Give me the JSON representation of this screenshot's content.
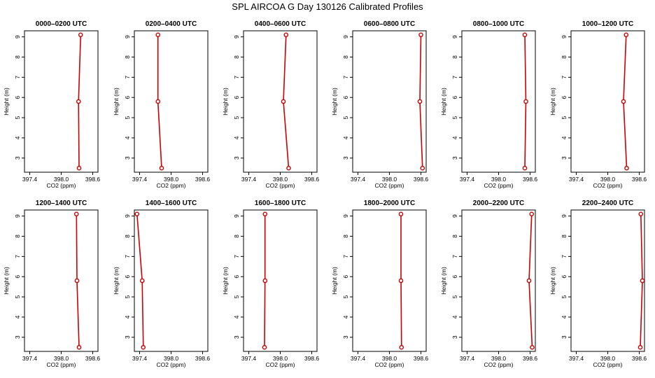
{
  "figure": {
    "title": "SPL AIRCOA G  Day 130126  Calibrated Profiles"
  },
  "chart_data": [
    {
      "type": "line",
      "title": "0000–0200 UTC",
      "xlabel": "CO2 (ppm)",
      "ylabel": "Height (m)",
      "xlim": [
        397.3,
        398.7
      ],
      "ylim": [
        2.3,
        9.3
      ],
      "xticks": [
        "397.4",
        "398.0",
        "398.6"
      ],
      "yticks": [
        "3",
        "4",
        "5",
        "6",
        "7",
        "8",
        "9"
      ],
      "grid": false,
      "series": [
        {
          "color": "#cc0000",
          "points": [
            {
              "x": 398.34,
              "y": 2.5
            },
            {
              "x": 398.33,
              "y": 5.8
            },
            {
              "x": 398.37,
              "y": 9.1
            }
          ]
        }
      ]
    },
    {
      "type": "line",
      "title": "0200–0400 UTC",
      "xlabel": "CO2 (ppm)",
      "ylabel": "Height (m)",
      "xlim": [
        397.3,
        398.7
      ],
      "ylim": [
        2.3,
        9.3
      ],
      "xticks": [
        "397.4",
        "398.0",
        "398.6"
      ],
      "yticks": [
        "3",
        "4",
        "5",
        "6",
        "7",
        "8",
        "9"
      ],
      "grid": false,
      "series": [
        {
          "color": "#cc0000",
          "points": [
            {
              "x": 397.82,
              "y": 2.5
            },
            {
              "x": 397.75,
              "y": 5.8
            },
            {
              "x": 397.75,
              "y": 9.1
            }
          ]
        }
      ]
    },
    {
      "type": "line",
      "title": "0400–0600 UTC",
      "xlabel": "CO2 (ppm)",
      "ylabel": "Height (m)",
      "xlim": [
        397.3,
        398.7
      ],
      "ylim": [
        2.3,
        9.3
      ],
      "xticks": [
        "397.4",
        "398.0",
        "398.6"
      ],
      "yticks": [
        "3",
        "4",
        "5",
        "6",
        "7",
        "8",
        "9"
      ],
      "grid": false,
      "series": [
        {
          "color": "#cc0000",
          "points": [
            {
              "x": 398.16,
              "y": 2.5
            },
            {
              "x": 398.06,
              "y": 5.8
            },
            {
              "x": 398.11,
              "y": 9.1
            }
          ]
        }
      ]
    },
    {
      "type": "line",
      "title": "0600–0800 UTC",
      "xlabel": "CO2 (ppm)",
      "ylabel": "Height (m)",
      "xlim": [
        397.3,
        398.7
      ],
      "ylim": [
        2.3,
        9.3
      ],
      "xticks": [
        "397.4",
        "398.0",
        "398.6"
      ],
      "yticks": [
        "3",
        "4",
        "5",
        "6",
        "7",
        "8",
        "9"
      ],
      "grid": false,
      "series": [
        {
          "color": "#cc0000",
          "points": [
            {
              "x": 398.63,
              "y": 2.5
            },
            {
              "x": 398.58,
              "y": 5.8
            },
            {
              "x": 398.6,
              "y": 9.1
            }
          ]
        }
      ]
    },
    {
      "type": "line",
      "title": "0800–1000 UTC",
      "xlabel": "CO2 (ppm)",
      "ylabel": "Height (m)",
      "xlim": [
        397.3,
        398.7
      ],
      "ylim": [
        2.3,
        9.3
      ],
      "xticks": [
        "397.4",
        "398.0",
        "398.6"
      ],
      "yticks": [
        "3",
        "4",
        "5",
        "6",
        "7",
        "8",
        "9"
      ],
      "grid": false,
      "series": [
        {
          "color": "#cc0000",
          "points": [
            {
              "x": 398.5,
              "y": 2.5
            },
            {
              "x": 398.52,
              "y": 5.8
            },
            {
              "x": 398.5,
              "y": 9.1
            }
          ]
        }
      ]
    },
    {
      "type": "line",
      "title": "1000–1200 UTC",
      "xlabel": "CO2 (ppm)",
      "ylabel": "Height (m)",
      "xlim": [
        397.3,
        398.7
      ],
      "ylim": [
        2.3,
        9.3
      ],
      "xticks": [
        "397.4",
        "398.0",
        "398.6"
      ],
      "yticks": [
        "3",
        "4",
        "5",
        "6",
        "7",
        "8",
        "9"
      ],
      "grid": false,
      "series": [
        {
          "color": "#cc0000",
          "points": [
            {
              "x": 398.36,
              "y": 2.5
            },
            {
              "x": 398.3,
              "y": 5.8
            },
            {
              "x": 398.35,
              "y": 9.1
            }
          ]
        }
      ]
    },
    {
      "type": "line",
      "title": "1200–1400 UTC",
      "xlabel": "CO2 (ppm)",
      "ylabel": "Height (m)",
      "xlim": [
        397.3,
        398.7
      ],
      "ylim": [
        2.3,
        9.3
      ],
      "xticks": [
        "397.4",
        "398.0",
        "398.6"
      ],
      "yticks": [
        "3",
        "4",
        "5",
        "6",
        "7",
        "8",
        "9"
      ],
      "grid": false,
      "series": [
        {
          "color": "#cc0000",
          "points": [
            {
              "x": 398.34,
              "y": 2.5
            },
            {
              "x": 398.3,
              "y": 5.8
            },
            {
              "x": 398.29,
              "y": 9.1
            }
          ]
        }
      ]
    },
    {
      "type": "line",
      "title": "1400–1600 UTC",
      "xlabel": "CO2 (ppm)",
      "ylabel": "Height (m)",
      "xlim": [
        397.3,
        398.7
      ],
      "ylim": [
        2.3,
        9.3
      ],
      "xticks": [
        "397.4",
        "398.0",
        "398.6"
      ],
      "yticks": [
        "3",
        "4",
        "5",
        "6",
        "7",
        "8",
        "9"
      ],
      "grid": false,
      "series": [
        {
          "color": "#cc0000",
          "points": [
            {
              "x": 397.47,
              "y": 2.5
            },
            {
              "x": 397.45,
              "y": 5.8
            },
            {
              "x": 397.35,
              "y": 9.1
            }
          ]
        }
      ]
    },
    {
      "type": "line",
      "title": "1600–1800 UTC",
      "xlabel": "CO2 (ppm)",
      "ylabel": "Height (m)",
      "xlim": [
        397.3,
        398.7
      ],
      "ylim": [
        2.3,
        9.3
      ],
      "xticks": [
        "397.4",
        "398.0",
        "398.6"
      ],
      "yticks": [
        "3",
        "4",
        "5",
        "6",
        "7",
        "8",
        "9"
      ],
      "grid": false,
      "series": [
        {
          "color": "#cc0000",
          "points": [
            {
              "x": 397.7,
              "y": 2.5
            },
            {
              "x": 397.71,
              "y": 5.8
            },
            {
              "x": 397.71,
              "y": 9.1
            }
          ]
        }
      ]
    },
    {
      "type": "line",
      "title": "1800–2000 UTC",
      "xlabel": "CO2 (ppm)",
      "ylabel": "Height (m)",
      "xlim": [
        397.3,
        398.7
      ],
      "ylim": [
        2.3,
        9.3
      ],
      "xticks": [
        "397.4",
        "398.0",
        "398.6"
      ],
      "yticks": [
        "3",
        "4",
        "5",
        "6",
        "7",
        "8",
        "9"
      ],
      "grid": false,
      "series": [
        {
          "color": "#cc0000",
          "points": [
            {
              "x": 398.23,
              "y": 2.5
            },
            {
              "x": 398.22,
              "y": 5.8
            },
            {
              "x": 398.22,
              "y": 9.1
            }
          ]
        }
      ]
    },
    {
      "type": "line",
      "title": "2000–2200 UTC",
      "xlabel": "CO2 (ppm)",
      "ylabel": "Height (m)",
      "xlim": [
        397.3,
        398.7
      ],
      "ylim": [
        2.3,
        9.3
      ],
      "xticks": [
        "397.4",
        "398.0",
        "398.6"
      ],
      "yticks": [
        "3",
        "4",
        "5",
        "6",
        "7",
        "8",
        "9"
      ],
      "grid": false,
      "series": [
        {
          "color": "#cc0000",
          "points": [
            {
              "x": 398.64,
              "y": 2.5
            },
            {
              "x": 398.58,
              "y": 5.8
            },
            {
              "x": 398.63,
              "y": 9.1
            }
          ]
        }
      ]
    },
    {
      "type": "line",
      "title": "2200–2400 UTC",
      "xlabel": "CO2 (ppm)",
      "ylabel": "Height (m)",
      "xlim": [
        397.3,
        398.7
      ],
      "ylim": [
        2.3,
        9.3
      ],
      "xticks": [
        "397.4",
        "398.0",
        "398.6"
      ],
      "yticks": [
        "3",
        "4",
        "5",
        "6",
        "7",
        "8",
        "9"
      ],
      "grid": false,
      "series": [
        {
          "color": "#cc0000",
          "points": [
            {
              "x": 398.62,
              "y": 2.5
            },
            {
              "x": 398.66,
              "y": 5.8
            },
            {
              "x": 398.63,
              "y": 9.1
            }
          ]
        }
      ]
    }
  ]
}
